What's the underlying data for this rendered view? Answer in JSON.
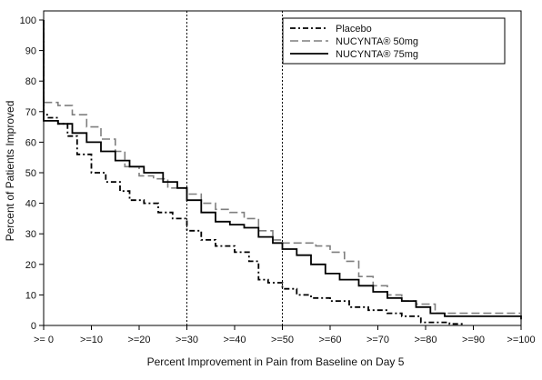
{
  "chart_data": {
    "type": "line",
    "xlabel": "Percent Improvement in Pain from Baseline on Day 5",
    "ylabel": "Percent of Patients Improved",
    "xlim": [
      0,
      100
    ],
    "ylim": [
      0,
      100
    ],
    "x_ticks": [
      0,
      10,
      20,
      30,
      40,
      50,
      60,
      70,
      80,
      90,
      100
    ],
    "x_tick_labels": [
      ">= 0",
      ">=10",
      ">=20",
      ">=30",
      ">=40",
      ">=50",
      ">=60",
      ">=70",
      ">=80",
      ">=90",
      ">=100"
    ],
    "y_ticks": [
      0,
      10,
      20,
      30,
      40,
      50,
      60,
      70,
      80,
      90,
      100
    ],
    "y_tick_labels": [
      "0",
      "10",
      "20",
      "30",
      "40",
      "50",
      "60",
      "70",
      "80",
      "90",
      "100"
    ],
    "reference_lines_x": [
      30,
      50
    ],
    "legend_position": "top-right",
    "grid": false,
    "series": [
      {
        "name": "Placebo",
        "style": "dash-dot",
        "color": "#000000",
        "points": [
          [
            0,
            100
          ],
          [
            0,
            69
          ],
          [
            1,
            68
          ],
          [
            3,
            66
          ],
          [
            5,
            62
          ],
          [
            7,
            56
          ],
          [
            10,
            50
          ],
          [
            13,
            47
          ],
          [
            16,
            44
          ],
          [
            18,
            41
          ],
          [
            21,
            40
          ],
          [
            24,
            37
          ],
          [
            27,
            35
          ],
          [
            30,
            31
          ],
          [
            33,
            28
          ],
          [
            36,
            26
          ],
          [
            40,
            24
          ],
          [
            43,
            21
          ],
          [
            45,
            19
          ],
          [
            45,
            15
          ],
          [
            47,
            14
          ],
          [
            50,
            12
          ],
          [
            53,
            10
          ],
          [
            56,
            9
          ],
          [
            60,
            8
          ],
          [
            64,
            6
          ],
          [
            68,
            5
          ],
          [
            72,
            4
          ],
          [
            75,
            3
          ],
          [
            79,
            1
          ],
          [
            82,
            1
          ],
          [
            85,
            0.5
          ],
          [
            88,
            0.5
          ]
        ]
      },
      {
        "name": "NUCYNTA® 50mg",
        "style": "dashed",
        "color": "#7f7f7f",
        "points": [
          [
            0,
            100
          ],
          [
            0,
            73
          ],
          [
            3,
            72
          ],
          [
            6,
            69
          ],
          [
            9,
            65
          ],
          [
            12,
            61
          ],
          [
            15,
            57
          ],
          [
            17,
            52
          ],
          [
            20,
            49
          ],
          [
            23,
            48
          ],
          [
            26,
            45
          ],
          [
            30,
            43
          ],
          [
            33,
            40
          ],
          [
            36,
            38
          ],
          [
            39,
            37
          ],
          [
            42,
            35
          ],
          [
            45,
            31
          ],
          [
            48,
            28
          ],
          [
            50,
            27
          ],
          [
            53,
            27
          ],
          [
            57,
            26
          ],
          [
            60,
            24
          ],
          [
            63,
            21
          ],
          [
            66,
            16
          ],
          [
            69,
            13
          ],
          [
            72,
            10
          ],
          [
            75,
            8
          ],
          [
            78,
            7
          ],
          [
            82,
            4
          ],
          [
            85,
            4
          ],
          [
            88,
            4
          ],
          [
            90,
            4
          ],
          [
            100,
            4
          ]
        ]
      },
      {
        "name": "NUCYNTA® 75mg",
        "style": "solid",
        "color": "#000000",
        "points": [
          [
            0,
            100
          ],
          [
            0,
            67
          ],
          [
            3,
            66
          ],
          [
            6,
            63
          ],
          [
            9,
            60
          ],
          [
            12,
            57
          ],
          [
            15,
            54
          ],
          [
            18,
            52
          ],
          [
            21,
            50
          ],
          [
            25,
            47
          ],
          [
            28,
            45
          ],
          [
            30,
            41
          ],
          [
            33,
            37
          ],
          [
            36,
            34
          ],
          [
            39,
            33
          ],
          [
            42,
            32
          ],
          [
            45,
            29
          ],
          [
            48,
            27
          ],
          [
            50,
            25
          ],
          [
            53,
            23
          ],
          [
            56,
            20
          ],
          [
            59,
            17
          ],
          [
            62,
            15
          ],
          [
            66,
            13
          ],
          [
            69,
            11
          ],
          [
            72,
            9
          ],
          [
            75,
            8
          ],
          [
            78,
            6
          ],
          [
            81,
            4
          ],
          [
            84,
            3
          ],
          [
            87,
            3
          ],
          [
            89,
            3
          ],
          [
            100,
            2
          ]
        ]
      }
    ]
  }
}
